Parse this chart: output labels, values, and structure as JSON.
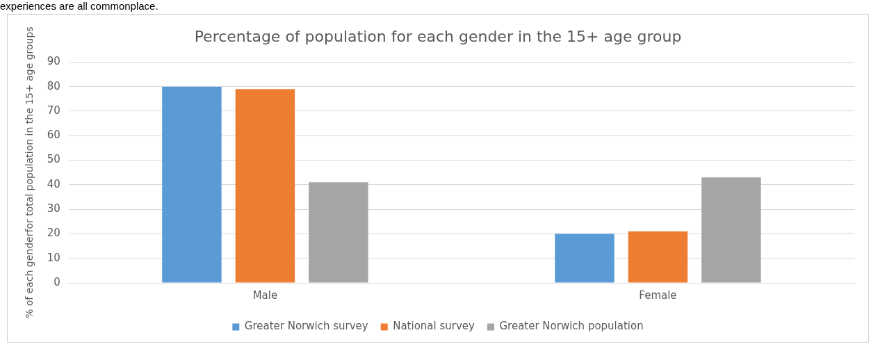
{
  "chart_data": {
    "type": "bar",
    "title": "Percentage of population for each gender in the 15+ age group",
    "ylabel": "% of each genderfor total population in the 15+ age groups",
    "annotations": [
      "experiences are all commonplace."
    ],
    "categories": [
      "Male",
      "Female"
    ],
    "series": [
      {
        "name": "Greater Norwich survey",
        "color": "#5b9bd5",
        "values": [
          80,
          20
        ]
      },
      {
        "name": "National survey",
        "color": "#ed7d31",
        "values": [
          79,
          21
        ]
      },
      {
        "name": "Greater Norwich population",
        "color": "#a5a5a5",
        "values": [
          41,
          43
        ]
      }
    ],
    "ylim": [
      0,
      90
    ],
    "yticks": [
      0,
      10,
      20,
      30,
      40,
      50,
      60,
      70,
      80,
      90
    ],
    "grid": "y",
    "legend": "bottom"
  }
}
